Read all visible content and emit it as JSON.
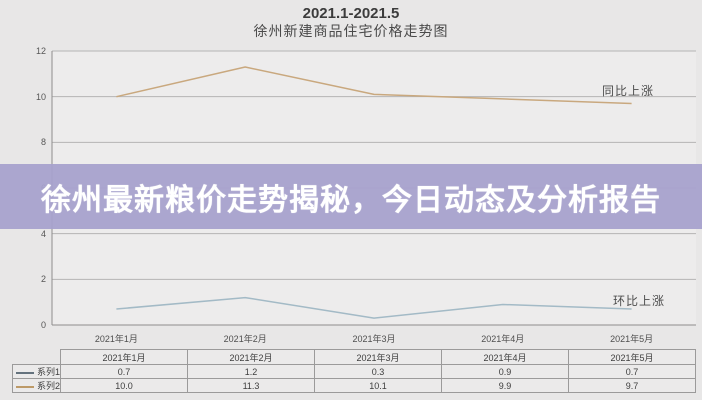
{
  "title": {
    "range": "2021.1-2021.5",
    "name": "徐州新建商品住宅价格走势图"
  },
  "banner": {
    "text": "徐州最新粮价走势揭秘，今日动态及分析报告",
    "bg_color": "#a7a1cd",
    "text_color": "#ffffff"
  },
  "chart_data": {
    "type": "line",
    "title": "2021.1-2021.5 徐州新建商品住宅价格走势图",
    "categories": [
      "2021年1月",
      "2021年2月",
      "2021年3月",
      "2021年4月",
      "2021年5月"
    ],
    "series": [
      {
        "name": "系列1",
        "annotation": "环比上涨",
        "color": "#a3bac6",
        "key_color": "#64727d",
        "values": [
          0.7,
          1.2,
          0.3,
          0.9,
          0.7
        ]
      },
      {
        "name": "系列2",
        "annotation": "同比上涨",
        "color": "#c9a87e",
        "key_color": "#bd9a68",
        "values": [
          10.0,
          11.3,
          10.1,
          9.9,
          9.7
        ]
      }
    ],
    "xlabel": "",
    "ylabel": "",
    "ylim": [
      0,
      12
    ],
    "yticks": [
      0,
      2,
      4,
      6,
      8,
      10,
      12
    ],
    "decimals": 1,
    "grid": true,
    "legend_position": "data-table-left"
  },
  "colors": {
    "page_bg": "#e8e7e7",
    "plot_bg": "#edecec",
    "gridline": "#b5b4b4",
    "axis": "#8e8d8d",
    "table_border": "#9b9a9a"
  }
}
